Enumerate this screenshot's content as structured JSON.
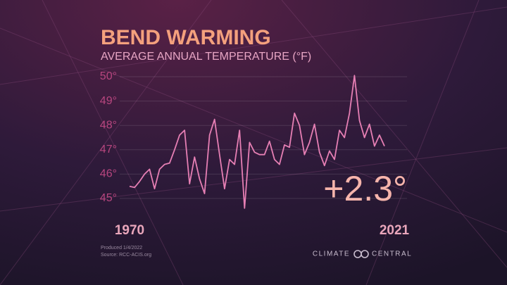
{
  "chart_data": {
    "type": "line",
    "title": "BEND WARMING",
    "subtitle": "AVERAGE  ANNUAL TEMPERATURE (°F)",
    "x": [
      1970,
      1971,
      1972,
      1973,
      1974,
      1975,
      1976,
      1977,
      1978,
      1979,
      1980,
      1981,
      1982,
      1983,
      1984,
      1985,
      1986,
      1987,
      1988,
      1989,
      1990,
      1991,
      1992,
      1993,
      1994,
      1995,
      1996,
      1997,
      1998,
      1999,
      2000,
      2001,
      2002,
      2003,
      2004,
      2005,
      2006,
      2007,
      2008,
      2009,
      2010,
      2011,
      2012,
      2013,
      2014,
      2015,
      2016,
      2017,
      2018,
      2019,
      2020,
      2021
    ],
    "series": [
      {
        "name": "Average annual temperature",
        "color": "#e67fb4",
        "values": [
          45.5,
          45.45,
          45.7,
          46.0,
          46.2,
          45.4,
          46.2,
          46.4,
          46.45,
          47.0,
          47.6,
          47.8,
          45.6,
          46.7,
          45.8,
          45.2,
          47.6,
          48.25,
          46.8,
          45.4,
          46.6,
          46.4,
          47.8,
          44.6,
          47.3,
          46.9,
          46.8,
          46.8,
          47.35,
          46.6,
          46.4,
          47.2,
          47.1,
          48.5,
          48.0,
          46.8,
          47.3,
          48.05,
          46.9,
          46.35,
          46.95,
          46.6,
          47.8,
          47.5,
          48.5,
          50.05,
          48.2,
          47.5,
          48.05,
          47.15,
          47.6,
          47.15
        ]
      }
    ],
    "xlim": [
      1970,
      2021
    ],
    "xticks": [
      1970,
      2021
    ],
    "ylim": [
      45,
      50
    ],
    "yticks": [
      {
        "value": 45,
        "label": "45°"
      },
      {
        "value": 46,
        "label": "46°"
      },
      {
        "value": 47,
        "label": "47°"
      },
      {
        "value": 48,
        "label": "48°"
      },
      {
        "value": 49,
        "label": "49°"
      },
      {
        "value": 50,
        "label": "50°"
      }
    ],
    "grid": true,
    "annotation": "+2.3°",
    "credits": [
      "Produced 1/4/2022",
      "Source: RCC-ACIS.org"
    ],
    "brand": [
      "CLIMATE",
      "CENTRAL"
    ]
  }
}
